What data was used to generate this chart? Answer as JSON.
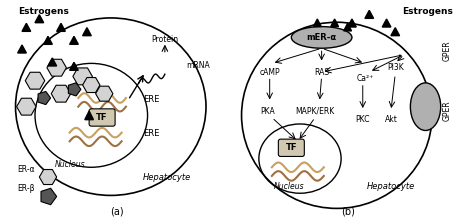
{
  "title": "",
  "background_color": "#ffffff",
  "panel_a": {
    "label": "(a)",
    "estrogens_label": "Estrogens",
    "hepatocyte_label": "Hepatocyte",
    "nucleus_label": "Nucleus",
    "protein_label": "Protein",
    "mrna_label": "mRNA",
    "ere_label": "ERE",
    "tf_label": "TF",
    "legend": [
      "ER-α",
      "ER-β"
    ]
  },
  "panel_b": {
    "label": "(b)",
    "estrogens_label": "Estrogens",
    "hepatocyte_label": "Hepatocyte",
    "nucleus_label": "Nucleus",
    "mer_label": "mER-α",
    "gper_label": "GPER",
    "nodes": [
      "cAMP",
      "RAS",
      "Ca²⁺",
      "PI3K",
      "PKA",
      "MAPK/ERK",
      "PKC",
      "Akt",
      "TF"
    ],
    "tf_label": "TF"
  }
}
